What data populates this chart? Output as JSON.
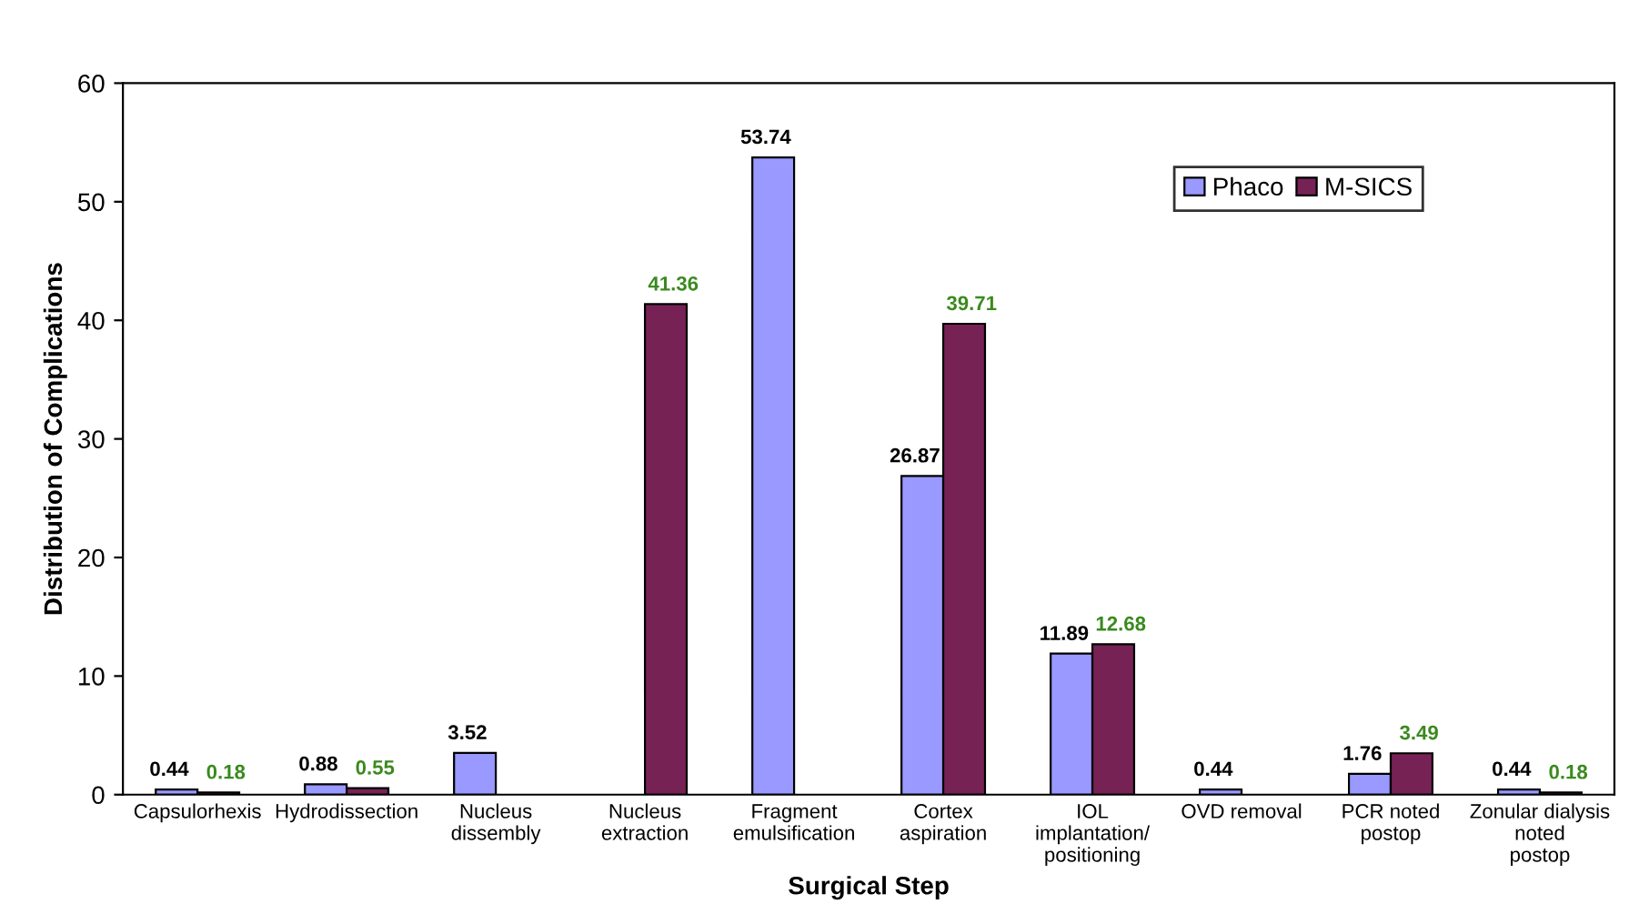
{
  "chart_data": {
    "type": "bar",
    "xlabel": "Surgical Step",
    "ylabel": "Distribution of Complications",
    "categories": [
      "Capsulorhexis",
      "Hydrodissection",
      "Nucleus\ndissembly",
      "Nucleus\nextraction",
      "Fragment\nemulsification",
      "Cortex\naspiration",
      "IOL\nimplantation/\npositioning",
      "OVD removal",
      "PCR noted\npostop",
      "Zonular dialysis\nnoted\npostop"
    ],
    "series": [
      {
        "name": "Phaco",
        "color": "#9999ff",
        "values": [
          0.44,
          0.88,
          3.52,
          null,
          53.74,
          26.87,
          11.89,
          0.44,
          1.76,
          0.44
        ]
      },
      {
        "name": "M-SICS",
        "color": "#772255",
        "values": [
          0.18,
          0.55,
          null,
          41.36,
          null,
          39.71,
          12.68,
          null,
          3.49,
          0.18
        ]
      }
    ],
    "ylim": [
      0,
      60
    ],
    "yticks": [
      0,
      10,
      20,
      30,
      40,
      50,
      60
    ],
    "grid": false,
    "legend": "top right",
    "data_labels": true
  }
}
